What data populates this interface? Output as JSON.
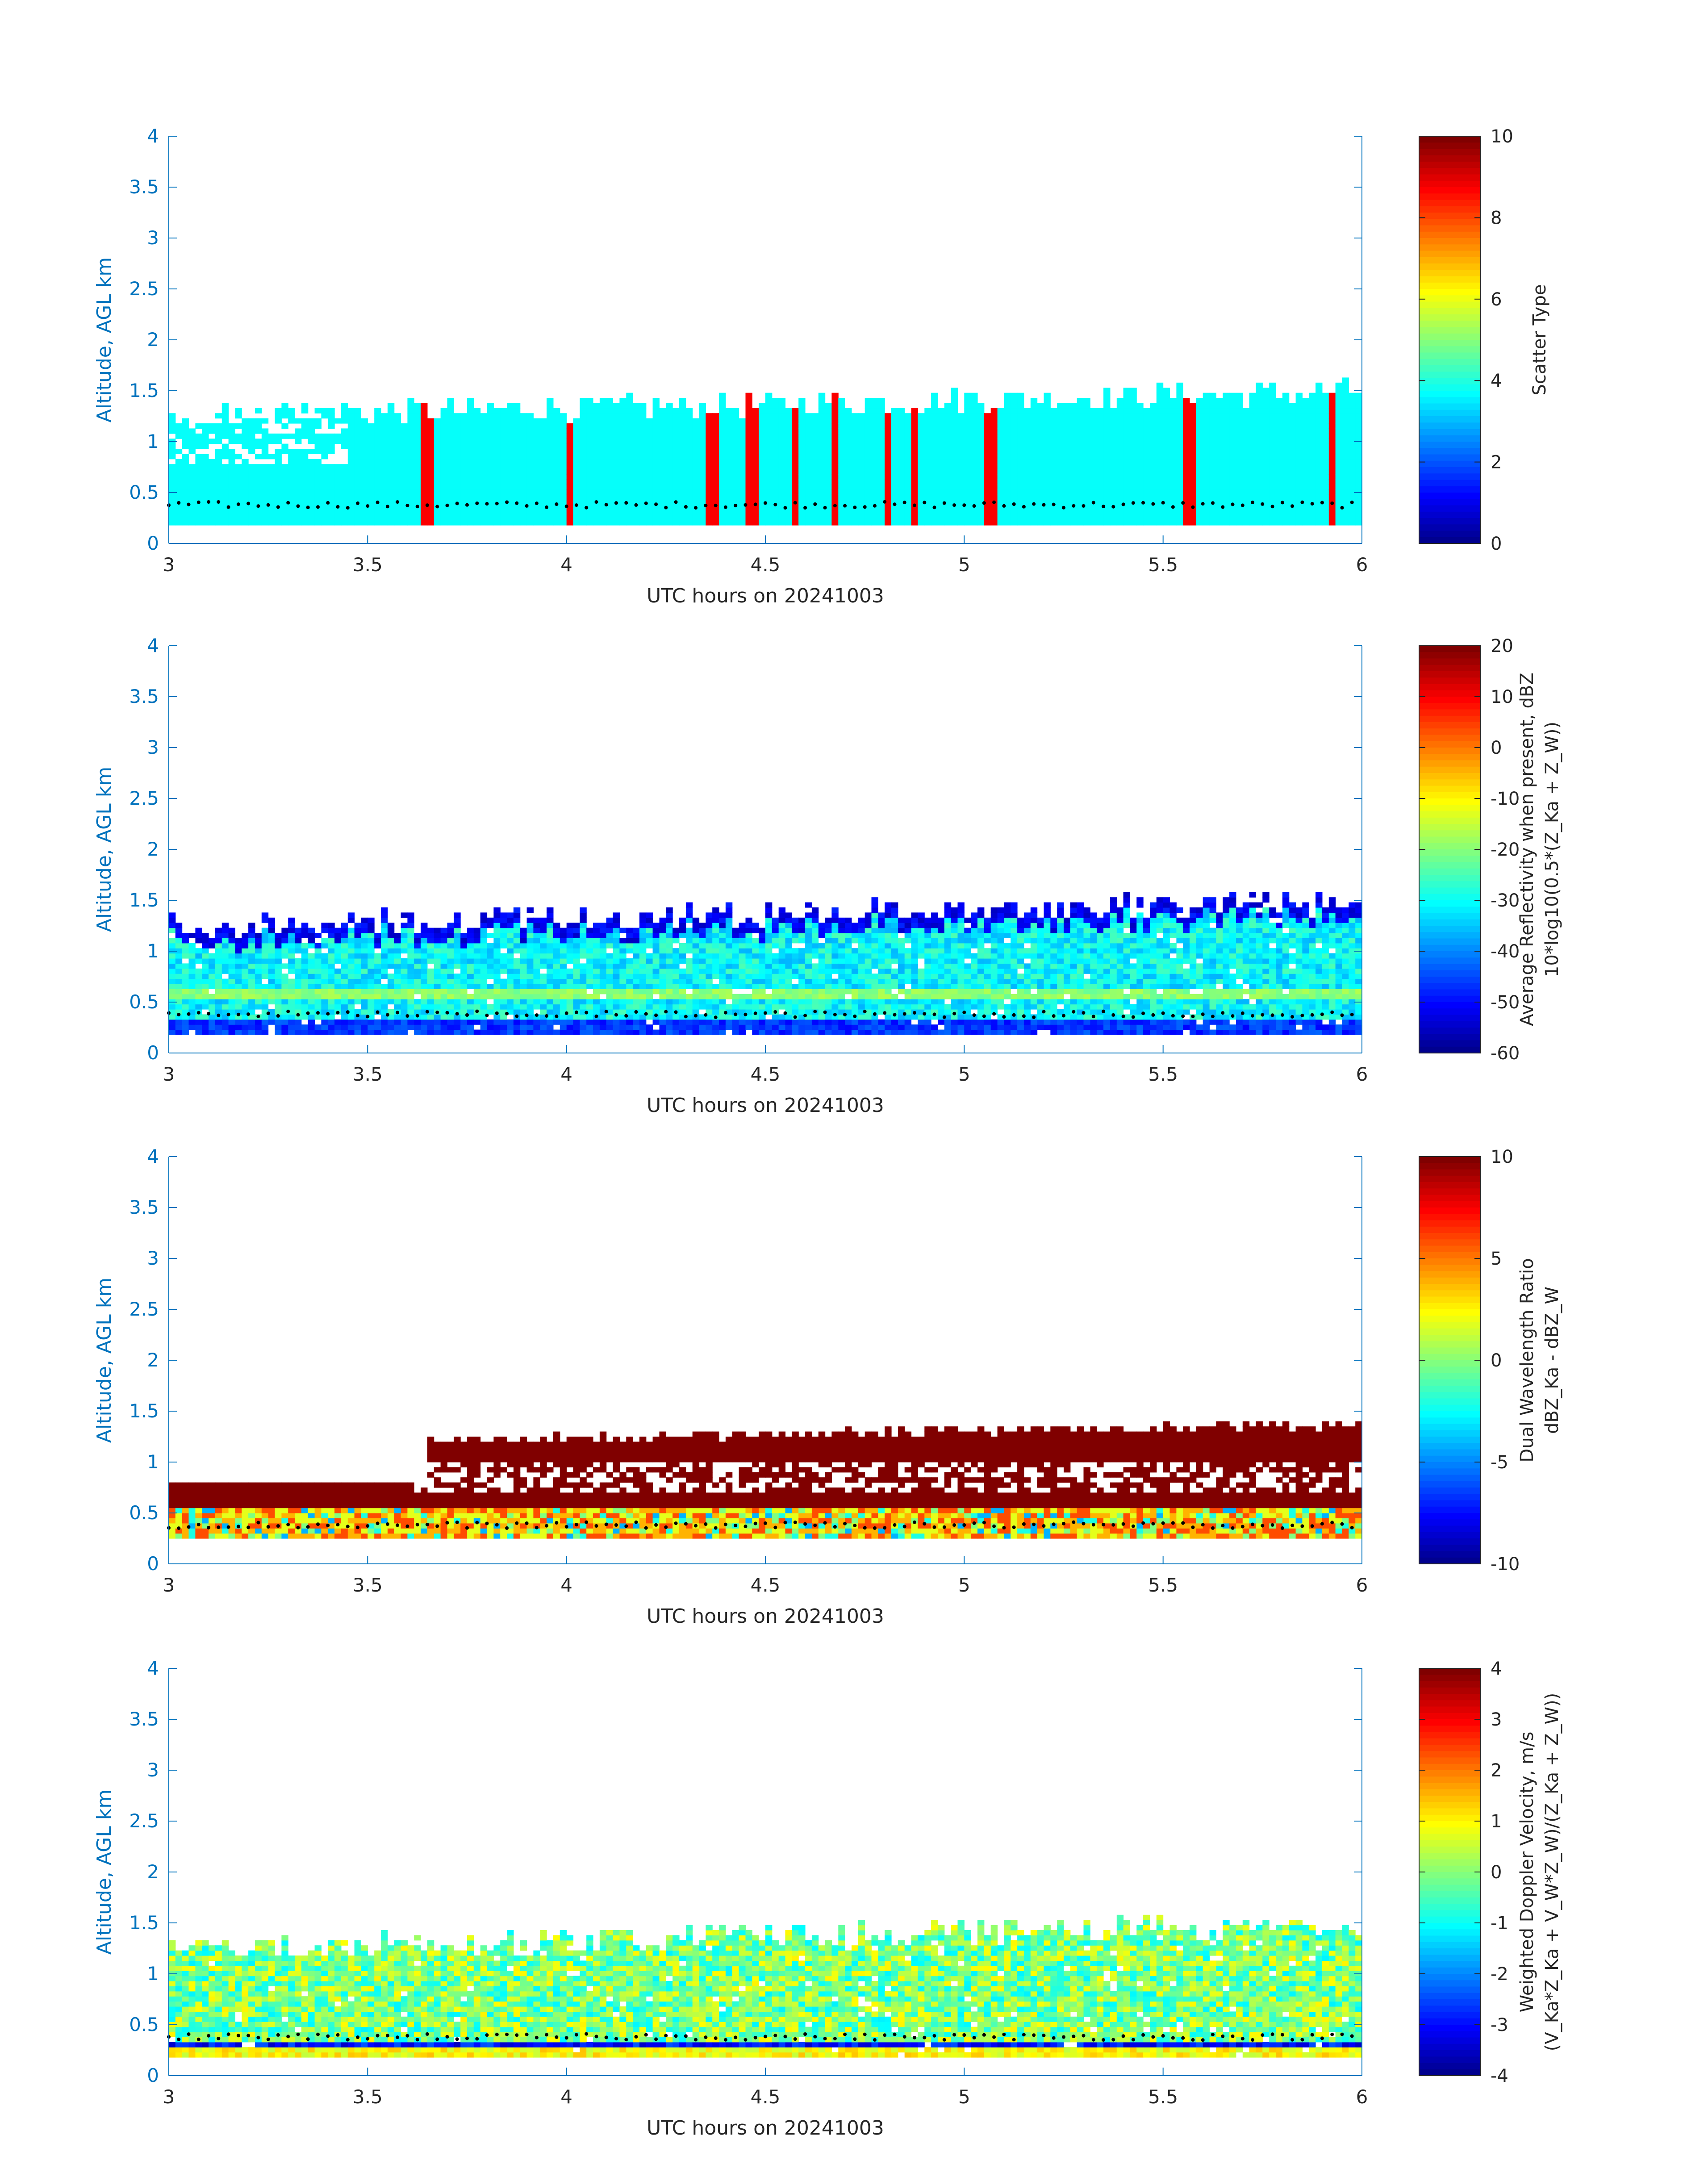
{
  "figure": {
    "shared": {
      "xlabel": "UTC hours on 20241003",
      "ylabel": "Altitude, AGL km",
      "xticks": [
        "3",
        "3.5",
        "4",
        "4.5",
        "5",
        "5.5",
        "6"
      ],
      "yticks": [
        "0",
        "0.5",
        "1",
        "1.5",
        "2",
        "2.5",
        "3",
        "3.5",
        "4"
      ],
      "axis_color": "#0072BD",
      "text_color": "#262626"
    }
  },
  "chart_data": [
    {
      "type": "heatmap",
      "title": "",
      "xlabel": "UTC hours on 20241003",
      "ylabel": "Altitude, AGL km",
      "xlim": [
        3,
        6
      ],
      "ylim": [
        0,
        4
      ],
      "colorbar": {
        "label_lines": [
          "Scatter Type"
        ],
        "ticks": [
          "0",
          "2",
          "4",
          "6",
          "8",
          "10"
        ],
        "range": [
          0,
          10
        ],
        "colormap": "jet"
      },
      "description_values": {
        "cloud_base_km": 0.18,
        "background_value": 3.8,
        "cloud_top_km_range": [
          1.2,
          1.75
        ],
        "spike_value": 8.8,
        "spike_times_utc": [
          3.64,
          4.0,
          4.36,
          4.46,
          4.57,
          4.67,
          4.8,
          4.87,
          5.06,
          5.56,
          5.92
        ],
        "dotted_line_km": 0.38
      }
    },
    {
      "type": "heatmap",
      "title": "",
      "xlabel": "UTC hours on 20241003",
      "ylabel": "Altitude, AGL km",
      "xlim": [
        3,
        6
      ],
      "ylim": [
        0,
        4
      ],
      "colorbar": {
        "label_lines": [
          "Average Reflectivity when present, dBZ",
          "10*log10(0.5*(Z_Ka + Z_W))"
        ],
        "ticks": [
          "20",
          "10",
          "0",
          "-10",
          "-20",
          "-30",
          "-40",
          "-50",
          "-60"
        ],
        "range": [
          -60,
          20
        ],
        "colormap": "jet"
      },
      "description_values": {
        "cloud_base_km": 0.18,
        "typical_dBZ": -30,
        "near_base_dBZ": -50,
        "melting_layer_km": 0.55,
        "melting_layer_dBZ": -22,
        "dotted_line_km": 0.38
      }
    },
    {
      "type": "heatmap",
      "title": "",
      "xlabel": "UTC hours on 20241003",
      "ylabel": "Altitude, AGL km",
      "xlim": [
        3,
        6
      ],
      "ylim": [
        0,
        4
      ],
      "colorbar": {
        "label_lines": [
          "Dual Wavelength Ratio",
          "dBZ_Ka - dBZ_W"
        ],
        "ticks": [
          "10",
          "5",
          "0",
          "-5",
          "-10"
        ],
        "range": [
          -10,
          10
        ],
        "colormap": "jet"
      },
      "description_values": {
        "cloud_base_km": 0.25,
        "dominant_value": 10,
        "lower_layer_values": [
          2,
          4,
          6
        ],
        "dotted_line_km": 0.38
      }
    },
    {
      "type": "heatmap",
      "title": "",
      "xlabel": "UTC hours on 20241003",
      "ylabel": "Altitude, AGL km",
      "xlim": [
        3,
        6
      ],
      "ylim": [
        0,
        4
      ],
      "colorbar": {
        "label_lines": [
          "Weighted Doppler Velocity, m/s",
          "(V_Ka*Z_Ka + V_W*Z_W)/(Z_Ka + Z_W))"
        ],
        "ticks": [
          "4",
          "3",
          "2",
          "1",
          "0",
          "-1",
          "-2",
          "-3",
          "-4"
        ],
        "range": [
          -4,
          4
        ],
        "colormap": "jet"
      },
      "description_values": {
        "cloud_base_km": 0.18,
        "typical_velocity": 0,
        "base_velocity": -3.5,
        "dotted_line_km": 0.38
      }
    }
  ]
}
